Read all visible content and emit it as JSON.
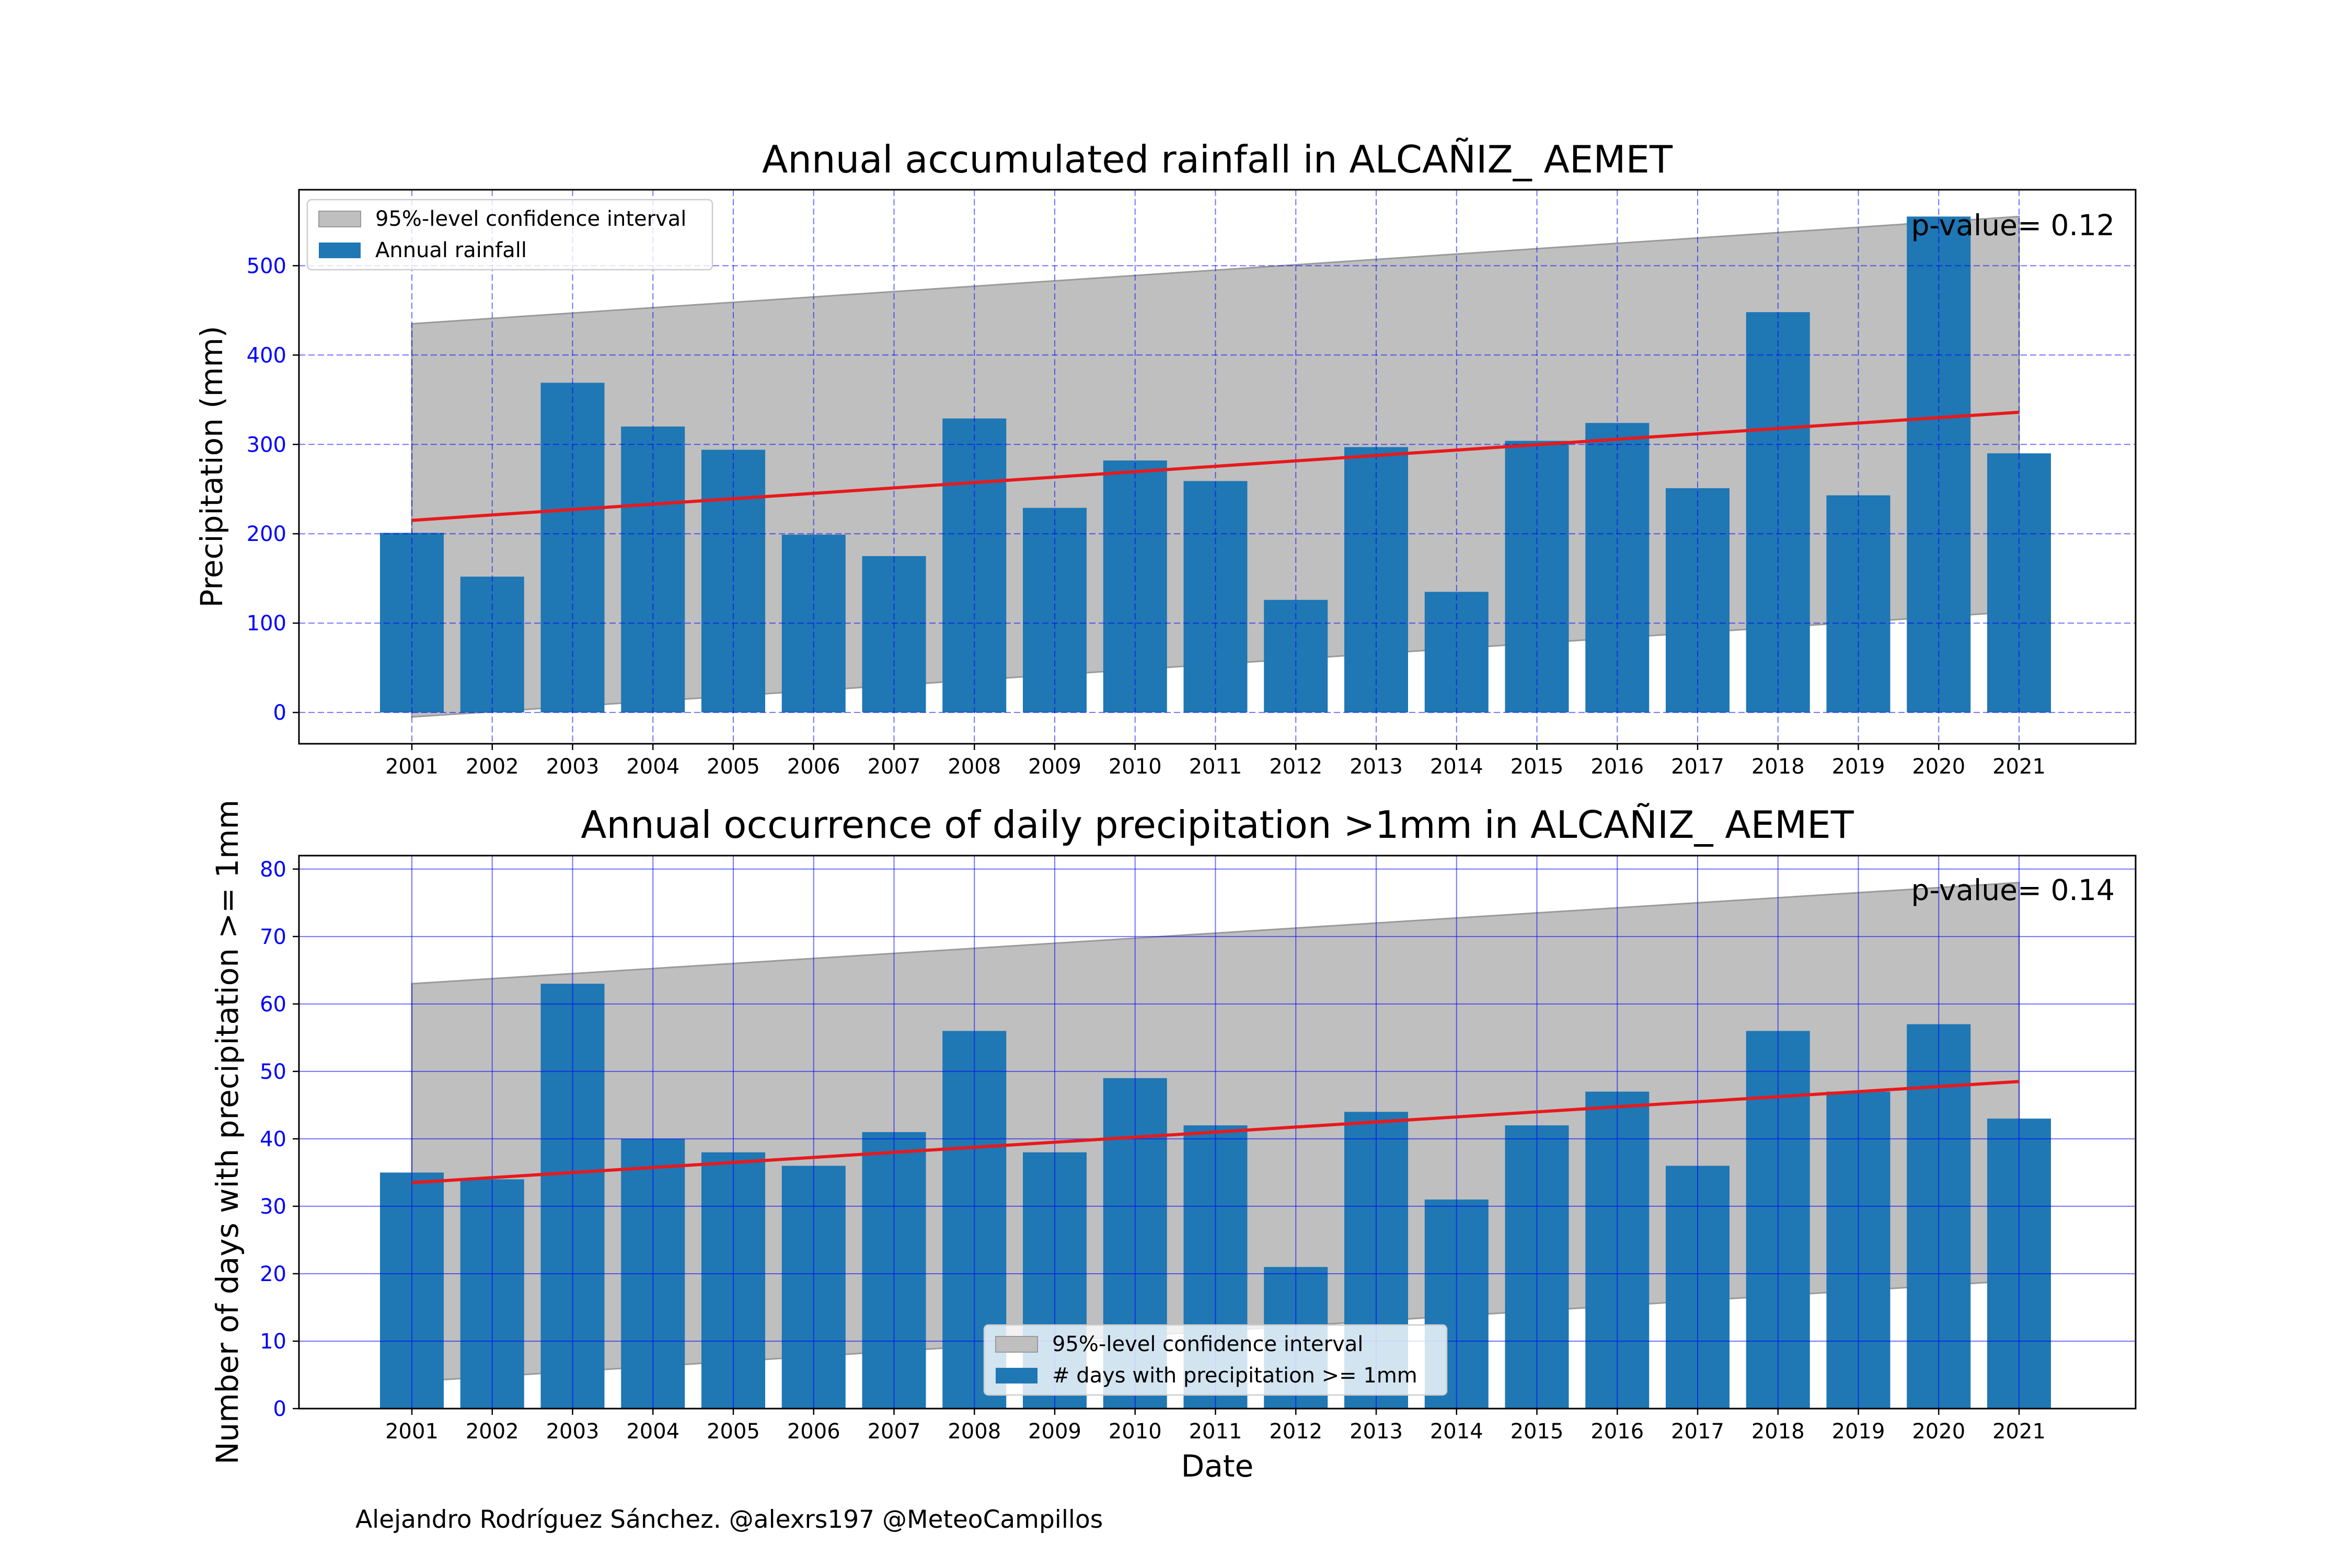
{
  "footer": {
    "credit": "Alejandro Rodríguez Sánchez. @alexrs197 @MeteoCampillos"
  },
  "chart_data": [
    {
      "type": "bar",
      "title": "Annual accumulated rainfall in ALCAÑIZ_ AEMET",
      "xlabel": "",
      "ylabel": "Precipitation (mm)",
      "annotation": "p-value= 0.12",
      "categories": [
        "2001",
        "2002",
        "2003",
        "2004",
        "2005",
        "2006",
        "2007",
        "2008",
        "2009",
        "2010",
        "2011",
        "2012",
        "2013",
        "2014",
        "2015",
        "2016",
        "2017",
        "2018",
        "2019",
        "2020",
        "2021"
      ],
      "series": [
        {
          "name": "Annual rainfall",
          "color": "#1f77b4",
          "values": [
            201,
            152,
            369,
            320,
            294,
            199,
            175,
            329,
            229,
            282,
            259,
            126,
            297,
            135,
            304,
            324,
            251,
            448,
            243,
            555,
            290
          ]
        }
      ],
      "trend": {
        "color": "#e8191c",
        "start": 215,
        "end": 336
      },
      "confidence_interval": {
        "name": "95%-level confidence interval",
        "color": "#bfbfbf",
        "lower_start": -5,
        "lower_end": 113,
        "upper_start": 435,
        "upper_end": 555
      },
      "yticks": [
        0,
        100,
        200,
        300,
        400,
        500
      ],
      "ylim": [
        -35,
        585
      ],
      "grid": "dashed",
      "grid_color": "#0000ff",
      "tick_color": "#0000ff",
      "legend_position": "top-left"
    },
    {
      "type": "bar",
      "title": "Annual occurrence of daily precipitation >1mm in ALCAÑIZ_ AEMET",
      "xlabel": "Date",
      "ylabel": "Number of days with precipitation >= 1mm",
      "annotation": "p-value= 0.14",
      "categories": [
        "2001",
        "2002",
        "2003",
        "2004",
        "2005",
        "2006",
        "2007",
        "2008",
        "2009",
        "2010",
        "2011",
        "2012",
        "2013",
        "2014",
        "2015",
        "2016",
        "2017",
        "2018",
        "2019",
        "2020",
        "2021"
      ],
      "series": [
        {
          "name": "# days with precipitation >= 1mm",
          "color": "#1f77b4",
          "values": [
            35,
            34,
            63,
            40,
            38,
            36,
            41,
            56,
            38,
            49,
            42,
            21,
            44,
            31,
            42,
            47,
            36,
            56,
            47,
            57,
            43
          ]
        }
      ],
      "trend": {
        "color": "#e8191c",
        "start": 33.5,
        "end": 48.5
      },
      "confidence_interval": {
        "name": "95%-level confidence interval",
        "color": "#bfbfbf",
        "lower_start": 4,
        "lower_end": 19,
        "upper_start": 63,
        "upper_end": 78
      },
      "yticks": [
        0,
        10,
        20,
        30,
        40,
        50,
        60,
        70,
        80
      ],
      "ylim": [
        0,
        82
      ],
      "grid": "solid",
      "grid_color": "#0000ff",
      "tick_color": "#0000ff",
      "legend_position": "bottom-center"
    }
  ]
}
